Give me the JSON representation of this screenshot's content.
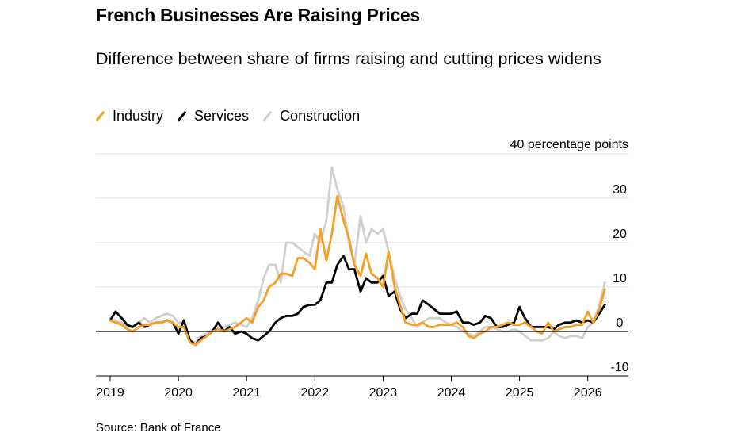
{
  "title": "French Businesses Are Raising Prices",
  "subtitle": "Difference between share of firms raising and cutting prices widens",
  "source": "Source: Bank of France",
  "legend": [
    {
      "name": "Industry",
      "color": "#f5a025"
    },
    {
      "name": "Services",
      "color": "#000000"
    },
    {
      "name": "Construction",
      "color": "#cfcfcf"
    }
  ],
  "chart_data": {
    "type": "line",
    "ylabel": "40 percentage points",
    "ylim": [
      -10,
      40
    ],
    "xlim": [
      2019,
      2026.6
    ],
    "y_ticks": [
      -10,
      0,
      10,
      20,
      30
    ],
    "x_ticks": [
      2019,
      2020,
      2021,
      2022,
      2023,
      2024,
      2025,
      2026
    ],
    "grid": true,
    "legend_position": "top-left",
    "series": [
      {
        "name": "Construction",
        "color": "#cfcfcf",
        "points": [
          [
            2019.0,
            3
          ],
          [
            2019.08,
            2.5
          ],
          [
            2019.17,
            2
          ],
          [
            2019.25,
            1
          ],
          [
            2019.33,
            1
          ],
          [
            2019.42,
            2
          ],
          [
            2019.5,
            3
          ],
          [
            2019.58,
            2
          ],
          [
            2019.67,
            3
          ],
          [
            2019.75,
            3.5
          ],
          [
            2019.83,
            4
          ],
          [
            2019.92,
            3.5
          ],
          [
            2020.0,
            2
          ],
          [
            2020.08,
            2
          ],
          [
            2020.17,
            -2
          ],
          [
            2020.25,
            -2.5
          ],
          [
            2020.33,
            -1
          ],
          [
            2020.42,
            -0.5
          ],
          [
            2020.5,
            0.5
          ],
          [
            2020.58,
            1
          ],
          [
            2020.67,
            1
          ],
          [
            2020.75,
            1.5
          ],
          [
            2020.83,
            2
          ],
          [
            2020.92,
            1.5
          ],
          [
            2021.0,
            1
          ],
          [
            2021.08,
            3
          ],
          [
            2021.17,
            7
          ],
          [
            2021.25,
            12
          ],
          [
            2021.33,
            15
          ],
          [
            2021.42,
            15
          ],
          [
            2021.5,
            11
          ],
          [
            2021.58,
            20
          ],
          [
            2021.67,
            20
          ],
          [
            2021.75,
            19
          ],
          [
            2021.83,
            18
          ],
          [
            2021.92,
            17
          ],
          [
            2022.0,
            22
          ],
          [
            2022.08,
            20
          ],
          [
            2022.17,
            25
          ],
          [
            2022.25,
            37
          ],
          [
            2022.33,
            32
          ],
          [
            2022.42,
            28
          ],
          [
            2022.5,
            20
          ],
          [
            2022.58,
            15
          ],
          [
            2022.67,
            26
          ],
          [
            2022.75,
            20
          ],
          [
            2022.83,
            23
          ],
          [
            2022.92,
            22
          ],
          [
            2023.0,
            23
          ],
          [
            2023.08,
            18
          ],
          [
            2023.17,
            12
          ],
          [
            2023.25,
            8
          ],
          [
            2023.33,
            5
          ],
          [
            2023.42,
            3
          ],
          [
            2023.5,
            1
          ],
          [
            2023.58,
            2
          ],
          [
            2023.67,
            3
          ],
          [
            2023.75,
            3
          ],
          [
            2023.83,
            3
          ],
          [
            2023.92,
            2
          ],
          [
            2024.0,
            1.5
          ],
          [
            2024.08,
            1
          ],
          [
            2024.17,
            0
          ],
          [
            2024.25,
            -0.5
          ],
          [
            2024.33,
            -1
          ],
          [
            2024.42,
            0
          ],
          [
            2024.5,
            1
          ],
          [
            2024.58,
            1
          ],
          [
            2024.67,
            0.5
          ],
          [
            2024.75,
            0
          ],
          [
            2024.83,
            0
          ],
          [
            2024.92,
            0.5
          ],
          [
            2025.0,
            0
          ],
          [
            2025.08,
            -1
          ],
          [
            2025.17,
            -2
          ],
          [
            2025.25,
            -2
          ],
          [
            2025.33,
            -2
          ],
          [
            2025.42,
            -1.5
          ],
          [
            2025.5,
            0
          ],
          [
            2025.58,
            -1
          ],
          [
            2025.67,
            -1.5
          ],
          [
            2025.75,
            -1
          ],
          [
            2025.83,
            -1
          ],
          [
            2025.92,
            -1.5
          ],
          [
            2026.0,
            1
          ],
          [
            2026.08,
            2
          ],
          [
            2026.17,
            6
          ],
          [
            2026.25,
            11
          ]
        ]
      },
      {
        "name": "Services",
        "color": "#000000",
        "points": [
          [
            2019.0,
            2.5
          ],
          [
            2019.08,
            4.5
          ],
          [
            2019.17,
            3
          ],
          [
            2019.25,
            1.5
          ],
          [
            2019.33,
            1
          ],
          [
            2019.42,
            2
          ],
          [
            2019.5,
            1
          ],
          [
            2019.58,
            1.5
          ],
          [
            2019.67,
            2
          ],
          [
            2019.75,
            2
          ],
          [
            2019.83,
            2.5
          ],
          [
            2019.92,
            2
          ],
          [
            2020.0,
            -0.5
          ],
          [
            2020.08,
            2.5
          ],
          [
            2020.17,
            -2
          ],
          [
            2020.25,
            -3
          ],
          [
            2020.33,
            -1.5
          ],
          [
            2020.42,
            -1
          ],
          [
            2020.5,
            0
          ],
          [
            2020.58,
            2
          ],
          [
            2020.67,
            0
          ],
          [
            2020.75,
            1
          ],
          [
            2020.83,
            -0.5
          ],
          [
            2020.92,
            0
          ],
          [
            2021.0,
            -0.5
          ],
          [
            2021.08,
            -1.5
          ],
          [
            2021.17,
            -2
          ],
          [
            2021.25,
            -1
          ],
          [
            2021.33,
            0
          ],
          [
            2021.42,
            2
          ],
          [
            2021.5,
            3
          ],
          [
            2021.58,
            3.5
          ],
          [
            2021.67,
            3.5
          ],
          [
            2021.75,
            4
          ],
          [
            2021.83,
            5.5
          ],
          [
            2021.92,
            6
          ],
          [
            2022.0,
            6
          ],
          [
            2022.08,
            7
          ],
          [
            2022.17,
            11
          ],
          [
            2022.25,
            11
          ],
          [
            2022.33,
            15
          ],
          [
            2022.42,
            17
          ],
          [
            2022.5,
            14
          ],
          [
            2022.58,
            14
          ],
          [
            2022.67,
            9
          ],
          [
            2022.75,
            12
          ],
          [
            2022.83,
            11
          ],
          [
            2022.92,
            11
          ],
          [
            2023.0,
            12.5
          ],
          [
            2023.08,
            8
          ],
          [
            2023.17,
            9
          ],
          [
            2023.25,
            5
          ],
          [
            2023.33,
            3
          ],
          [
            2023.42,
            4
          ],
          [
            2023.5,
            4
          ],
          [
            2023.58,
            7
          ],
          [
            2023.67,
            6
          ],
          [
            2023.75,
            5
          ],
          [
            2023.83,
            4
          ],
          [
            2023.92,
            4
          ],
          [
            2024.0,
            4
          ],
          [
            2024.08,
            4.5
          ],
          [
            2024.17,
            2
          ],
          [
            2024.25,
            2
          ],
          [
            2024.33,
            1.5
          ],
          [
            2024.42,
            2
          ],
          [
            2024.5,
            3.5
          ],
          [
            2024.58,
            3
          ],
          [
            2024.67,
            1
          ],
          [
            2024.75,
            1
          ],
          [
            2024.83,
            1.5
          ],
          [
            2024.92,
            2
          ],
          [
            2025.0,
            5.5
          ],
          [
            2025.08,
            3
          ],
          [
            2025.17,
            1
          ],
          [
            2025.25,
            1
          ],
          [
            2025.33,
            1
          ],
          [
            2025.42,
            1
          ],
          [
            2025.5,
            0.5
          ],
          [
            2025.58,
            1.5
          ],
          [
            2025.67,
            2
          ],
          [
            2025.75,
            2
          ],
          [
            2025.83,
            2.5
          ],
          [
            2025.92,
            2
          ],
          [
            2026.0,
            2.5
          ],
          [
            2026.08,
            2
          ],
          [
            2026.17,
            4
          ],
          [
            2026.25,
            6
          ]
        ]
      },
      {
        "name": "Industry",
        "color": "#f5a025",
        "points": [
          [
            2019.0,
            2.5
          ],
          [
            2019.08,
            2
          ],
          [
            2019.17,
            1.5
          ],
          [
            2019.25,
            0.5
          ],
          [
            2019.33,
            0
          ],
          [
            2019.42,
            1
          ],
          [
            2019.5,
            1.5
          ],
          [
            2019.58,
            1.5
          ],
          [
            2019.67,
            2
          ],
          [
            2019.75,
            2
          ],
          [
            2019.83,
            2.5
          ],
          [
            2019.92,
            2
          ],
          [
            2020.0,
            1
          ],
          [
            2020.08,
            1
          ],
          [
            2020.17,
            -2.5
          ],
          [
            2020.25,
            -3
          ],
          [
            2020.33,
            -2
          ],
          [
            2020.42,
            -1
          ],
          [
            2020.5,
            0
          ],
          [
            2020.58,
            0.5
          ],
          [
            2020.67,
            0
          ],
          [
            2020.75,
            0.5
          ],
          [
            2020.83,
            1
          ],
          [
            2020.92,
            2
          ],
          [
            2021.0,
            3
          ],
          [
            2021.08,
            2
          ],
          [
            2021.17,
            5.5
          ],
          [
            2021.25,
            7
          ],
          [
            2021.33,
            10
          ],
          [
            2021.42,
            11
          ],
          [
            2021.5,
            13
          ],
          [
            2021.58,
            13
          ],
          [
            2021.67,
            12.5
          ],
          [
            2021.75,
            16.5
          ],
          [
            2021.83,
            16.5
          ],
          [
            2021.92,
            15.5
          ],
          [
            2022.0,
            14
          ],
          [
            2022.08,
            23
          ],
          [
            2022.17,
            16
          ],
          [
            2022.25,
            22
          ],
          [
            2022.33,
            30.5
          ],
          [
            2022.42,
            25
          ],
          [
            2022.5,
            21
          ],
          [
            2022.58,
            15
          ],
          [
            2022.67,
            12.5
          ],
          [
            2022.75,
            17.5
          ],
          [
            2022.83,
            13
          ],
          [
            2022.92,
            12
          ],
          [
            2023.0,
            10
          ],
          [
            2023.08,
            18
          ],
          [
            2023.17,
            10
          ],
          [
            2023.25,
            6
          ],
          [
            2023.33,
            2
          ],
          [
            2023.42,
            1.5
          ],
          [
            2023.5,
            1.5
          ],
          [
            2023.58,
            2
          ],
          [
            2023.67,
            1
          ],
          [
            2023.75,
            1
          ],
          [
            2023.83,
            1.5
          ],
          [
            2023.92,
            1.5
          ],
          [
            2024.0,
            1.5
          ],
          [
            2024.08,
            2
          ],
          [
            2024.17,
            1
          ],
          [
            2024.25,
            -1
          ],
          [
            2024.33,
            -1.5
          ],
          [
            2024.42,
            -0.5
          ],
          [
            2024.5,
            0
          ],
          [
            2024.58,
            1
          ],
          [
            2024.67,
            1
          ],
          [
            2024.75,
            1.5
          ],
          [
            2024.83,
            2
          ],
          [
            2024.92,
            1.5
          ],
          [
            2025.0,
            1.5
          ],
          [
            2025.08,
            2
          ],
          [
            2025.17,
            1
          ],
          [
            2025.25,
            0
          ],
          [
            2025.33,
            -0.5
          ],
          [
            2025.42,
            2
          ],
          [
            2025.5,
            0
          ],
          [
            2025.58,
            0.5
          ],
          [
            2025.67,
            1
          ],
          [
            2025.75,
            1
          ],
          [
            2025.83,
            1.5
          ],
          [
            2025.92,
            1.5
          ],
          [
            2026.0,
            4.5
          ],
          [
            2026.08,
            2
          ],
          [
            2026.17,
            5
          ],
          [
            2026.25,
            9.5
          ]
        ]
      }
    ]
  }
}
